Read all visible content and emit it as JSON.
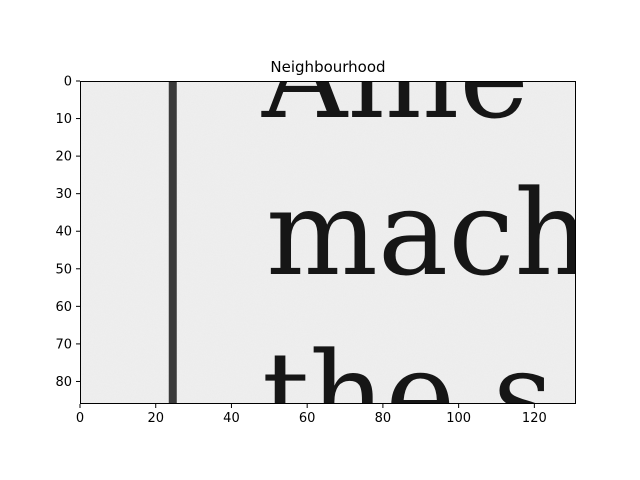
{
  "figure": {
    "title": "Neighbourhood",
    "x_axis": {
      "min": 0,
      "max": 131,
      "tick_values": [
        0,
        20,
        40,
        60,
        80,
        100,
        120
      ],
      "tick_labels": [
        "0",
        "20",
        "40",
        "60",
        "80",
        "100",
        "120"
      ]
    },
    "y_axis": {
      "min": 0,
      "max": 86,
      "inverted": true,
      "tick_values": [
        0,
        10,
        20,
        30,
        40,
        50,
        60,
        70,
        80
      ],
      "tick_labels": [
        "0",
        "10",
        "20",
        "30",
        "40",
        "50",
        "60",
        "70",
        "80"
      ]
    },
    "image_text_lines": [
      {
        "text": "Ame",
        "baseline_y": 9
      },
      {
        "text": "mach",
        "baseline_y": 51
      },
      {
        "text": "the s",
        "baseline_y": 94
      }
    ],
    "vertical_rule_x": 24.5,
    "colors": {
      "paper": "#efefef",
      "ink": "#161616",
      "frame": "#000000"
    }
  }
}
